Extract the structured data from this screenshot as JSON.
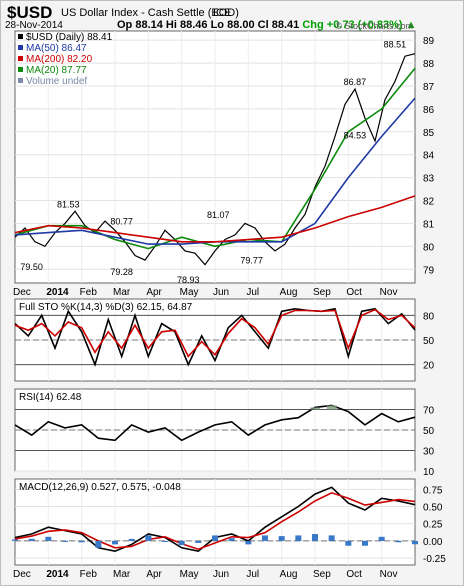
{
  "header": {
    "symbol": "$USD",
    "name": "US Dollar Index - Cash Settle (EOD)",
    "exchange": "ICE",
    "date": "28-Nov-2014",
    "open": "Op 88.14",
    "high": "Hi 88.46",
    "low": "Lo 88.00",
    "close": "Cl 88.41",
    "change": "Chg +0.73 (+0.83%)",
    "change_symbol": "▲",
    "watermark": "© StockCharts.com",
    "colors": {
      "up": "#00a000",
      "price": "#000000",
      "ma50": "#1f3aa6",
      "ma200": "#cc0000",
      "ma20": "#0b8a0b"
    }
  },
  "chart_data": [
    {
      "type": "line",
      "panel": "price",
      "ylim": [
        78.4,
        89.4
      ],
      "y_ticks": [
        79,
        80,
        81,
        82,
        83,
        84,
        85,
        86,
        87,
        88,
        89
      ],
      "x_labels": [
        "Dec",
        "2014",
        "Feb",
        "Mar",
        "Apr",
        "May",
        "Jun",
        "Jul",
        "Aug",
        "Sep",
        "Oct",
        "Nov"
      ],
      "legend": [
        {
          "label": "$USD (Daily) 88.41",
          "color": "#000000"
        },
        {
          "label": "MA(50) 86.47",
          "color": "#1f3aa6"
        },
        {
          "label": "MA(200) 82.20",
          "color": "#cc0000"
        },
        {
          "label": "MA(20) 87.77",
          "color": "#0b8a0b"
        },
        {
          "label": "Volume undef",
          "color": "#7a8aa8"
        }
      ],
      "annotations": [
        {
          "text": "81.53",
          "x": "Jan",
          "y": 81.53
        },
        {
          "text": "79.50",
          "x": "Dec",
          "y": 79.5
        },
        {
          "text": "80.77",
          "x": "Mar",
          "y": 80.77
        },
        {
          "text": "79.28",
          "x": "Mar",
          "y": 79.28
        },
        {
          "text": "78.93",
          "x": "May",
          "y": 78.93
        },
        {
          "text": "81.07",
          "x": "Jun",
          "y": 81.07
        },
        {
          "text": "79.77",
          "x": "Jul",
          "y": 79.77
        },
        {
          "text": "86.87",
          "x": "Oct",
          "y": 86.87
        },
        {
          "text": "84.53",
          "x": "Oct",
          "y": 84.53
        },
        {
          "text": "88.51",
          "x": "Nov",
          "y": 88.51
        }
      ],
      "series": [
        {
          "name": "$USD (Daily)",
          "color": "#000000",
          "x": [
            0,
            0.3,
            0.6,
            0.9,
            1.2,
            1.5,
            1.8,
            2.1,
            2.4,
            2.7,
            3.0,
            3.3,
            3.6,
            3.9,
            4.2,
            4.5,
            4.8,
            5.1,
            5.4,
            5.7,
            6.0,
            6.3,
            6.6,
            6.9,
            7.2,
            7.5,
            7.8,
            8.1,
            8.4,
            8.7,
            9.0,
            9.3,
            9.6,
            9.9,
            10.2,
            10.5,
            10.8,
            11.1,
            11.4,
            11.7,
            12.0
          ],
          "values": [
            80.4,
            80.8,
            80.2,
            80.0,
            80.6,
            81.0,
            81.53,
            80.9,
            80.6,
            81.1,
            80.7,
            80.2,
            79.6,
            79.4,
            80.0,
            80.7,
            80.3,
            79.8,
            79.7,
            79.2,
            79.8,
            80.3,
            80.5,
            81.0,
            80.8,
            80.2,
            79.8,
            80.1,
            80.8,
            81.4,
            82.6,
            83.5,
            84.8,
            86.2,
            86.87,
            85.6,
            84.6,
            86.4,
            87.2,
            88.3,
            88.41
          ]
        },
        {
          "name": "MA(20)",
          "color": "#0b8a0b",
          "x": [
            0,
            1,
            2,
            3,
            4,
            5,
            6,
            7,
            8,
            9,
            10,
            11,
            12
          ],
          "values": [
            80.5,
            80.9,
            80.9,
            80.3,
            79.9,
            80.4,
            80.0,
            80.3,
            80.2,
            82.5,
            85.0,
            86.0,
            87.77
          ]
        },
        {
          "name": "MA(50)",
          "color": "#1f3aa6",
          "x": [
            0,
            1,
            2,
            3,
            4,
            5,
            6,
            7,
            8,
            9,
            10,
            11,
            12
          ],
          "values": [
            80.5,
            80.6,
            80.7,
            80.4,
            80.1,
            80.1,
            80.2,
            80.2,
            80.2,
            81.0,
            83.0,
            84.8,
            86.47
          ]
        },
        {
          "name": "MA(200)",
          "color": "#cc0000",
          "x": [
            0,
            1,
            2,
            3,
            4,
            5,
            6,
            7,
            8,
            9,
            10,
            11,
            12
          ],
          "values": [
            80.6,
            80.9,
            80.8,
            80.6,
            80.4,
            80.2,
            80.2,
            80.3,
            80.4,
            80.8,
            81.3,
            81.7,
            82.2
          ]
        }
      ]
    },
    {
      "type": "line",
      "panel": "sto",
      "title": "Full STO %K(14,3) %D(3) 62.15, 64.87",
      "ylim": [
        0,
        100
      ],
      "y_ticks": [
        20,
        50,
        80
      ],
      "series": [
        {
          "name": "%K",
          "color": "#000000",
          "x": [
            0,
            0.4,
            0.8,
            1.2,
            1.6,
            2.0,
            2.4,
            2.8,
            3.2,
            3.6,
            4.0,
            4.4,
            4.8,
            5.2,
            5.6,
            6.0,
            6.4,
            6.8,
            7.2,
            7.6,
            8.0,
            8.4,
            8.8,
            9.2,
            9.6,
            10.0,
            10.4,
            10.8,
            11.2,
            11.6,
            12.0
          ],
          "values": [
            70,
            55,
            80,
            40,
            85,
            60,
            20,
            75,
            30,
            80,
            30,
            70,
            60,
            20,
            55,
            25,
            65,
            80,
            60,
            40,
            85,
            88,
            86,
            85,
            88,
            30,
            85,
            88,
            70,
            82,
            62.15
          ]
        },
        {
          "name": "%D",
          "color": "#cc0000",
          "x": [
            0,
            0.4,
            0.8,
            1.2,
            1.6,
            2.0,
            2.4,
            2.8,
            3.2,
            3.6,
            4.0,
            4.4,
            4.8,
            5.2,
            5.6,
            6.0,
            6.4,
            6.8,
            7.2,
            7.6,
            8.0,
            8.4,
            8.8,
            9.2,
            9.6,
            10.0,
            10.4,
            10.8,
            11.2,
            11.6,
            12.0
          ],
          "values": [
            68,
            62,
            70,
            55,
            72,
            65,
            35,
            60,
            40,
            68,
            40,
            60,
            62,
            30,
            48,
            32,
            58,
            76,
            65,
            45,
            80,
            86,
            86,
            85,
            86,
            40,
            80,
            87,
            75,
            80,
            64.87
          ]
        }
      ]
    },
    {
      "type": "line",
      "panel": "rsi",
      "title": "RSI(14) 62.48",
      "ylim": [
        10,
        90
      ],
      "y_ticks": [
        10,
        30,
        50,
        70
      ],
      "series": [
        {
          "name": "RSI(14)",
          "color": "#000000",
          "x": [
            0,
            0.5,
            1.0,
            1.5,
            2.0,
            2.5,
            3.0,
            3.5,
            4.0,
            4.5,
            5.0,
            5.5,
            6.0,
            6.5,
            7.0,
            7.5,
            8.0,
            8.5,
            9.0,
            9.5,
            10.0,
            10.5,
            11.0,
            11.5,
            12.0
          ],
          "values": [
            55,
            45,
            58,
            52,
            55,
            42,
            40,
            55,
            48,
            52,
            40,
            48,
            55,
            58,
            45,
            55,
            60,
            62,
            72,
            74,
            68,
            55,
            66,
            58,
            62.48
          ]
        }
      ]
    },
    {
      "type": "line",
      "panel": "macd",
      "title": "MACD(12,26,9) 0.527, 0.575, -0.048",
      "ylim": [
        -0.35,
        0.9
      ],
      "y_ticks": [
        -0.25,
        0.0,
        0.25,
        0.5,
        0.75
      ],
      "x_labels": [
        "Dec",
        "2014",
        "Feb",
        "Mar",
        "Apr",
        "May",
        "Jun",
        "Jul",
        "Aug",
        "Sep",
        "Oct",
        "Nov"
      ],
      "series": [
        {
          "name": "MACD",
          "color": "#000000",
          "x": [
            0,
            0.5,
            1,
            1.5,
            2,
            2.5,
            3,
            3.5,
            4,
            4.5,
            5,
            5.5,
            6,
            6.5,
            7,
            7.5,
            8,
            8.5,
            9,
            9.5,
            10,
            10.5,
            11,
            11.5,
            12
          ],
          "values": [
            0.05,
            0.1,
            0.2,
            0.15,
            0.1,
            -0.1,
            -0.15,
            -0.05,
            0.1,
            0.05,
            -0.1,
            -0.15,
            0.05,
            0.1,
            0.0,
            0.2,
            0.35,
            0.5,
            0.68,
            0.78,
            0.55,
            0.45,
            0.62,
            0.58,
            0.527
          ]
        },
        {
          "name": "Signal",
          "color": "#cc0000",
          "x": [
            0,
            0.5,
            1,
            1.5,
            2,
            2.5,
            3,
            3.5,
            4,
            4.5,
            5,
            5.5,
            6,
            6.5,
            7,
            7.5,
            8,
            8.5,
            9,
            9.5,
            10,
            10.5,
            11,
            11.5,
            12
          ],
          "values": [
            0.03,
            0.07,
            0.14,
            0.16,
            0.12,
            0.0,
            -0.1,
            -0.08,
            0.02,
            0.06,
            -0.04,
            -0.12,
            -0.03,
            0.06,
            0.05,
            0.12,
            0.28,
            0.42,
            0.58,
            0.7,
            0.62,
            0.52,
            0.56,
            0.6,
            0.575
          ]
        },
        {
          "name": "Histogram",
          "color": "#3a78c8",
          "x": [
            0,
            0.5,
            1,
            1.5,
            2,
            2.5,
            3,
            3.5,
            4,
            4.5,
            5,
            5.5,
            6,
            6.5,
            7,
            7.5,
            8,
            8.5,
            9,
            9.5,
            10,
            10.5,
            11,
            11.5,
            12
          ],
          "values": [
            0.02,
            0.03,
            0.06,
            -0.01,
            -0.02,
            -0.1,
            -0.05,
            0.03,
            0.08,
            -0.01,
            -0.06,
            -0.03,
            0.08,
            0.04,
            -0.05,
            0.08,
            0.07,
            0.08,
            0.1,
            0.08,
            -0.07,
            -0.07,
            0.06,
            -0.02,
            -0.048
          ]
        }
      ]
    }
  ]
}
